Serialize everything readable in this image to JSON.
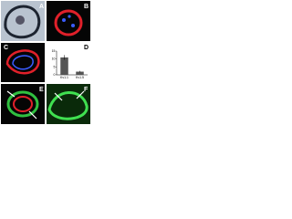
{
  "panels": {
    "a": "A",
    "b": "B",
    "c": "C",
    "d": "D",
    "e": "E",
    "f": "F"
  },
  "chart_data": {
    "type": "bar",
    "categories": [
      "Kv1.1",
      "Kv1.5"
    ],
    "values": [
      11,
      2
    ],
    "errors": [
      1.5,
      0.5
    ],
    "color": "#555555",
    "ylim": [
      0,
      15
    ],
    "yticks": [
      0,
      5,
      10,
      15
    ]
  }
}
